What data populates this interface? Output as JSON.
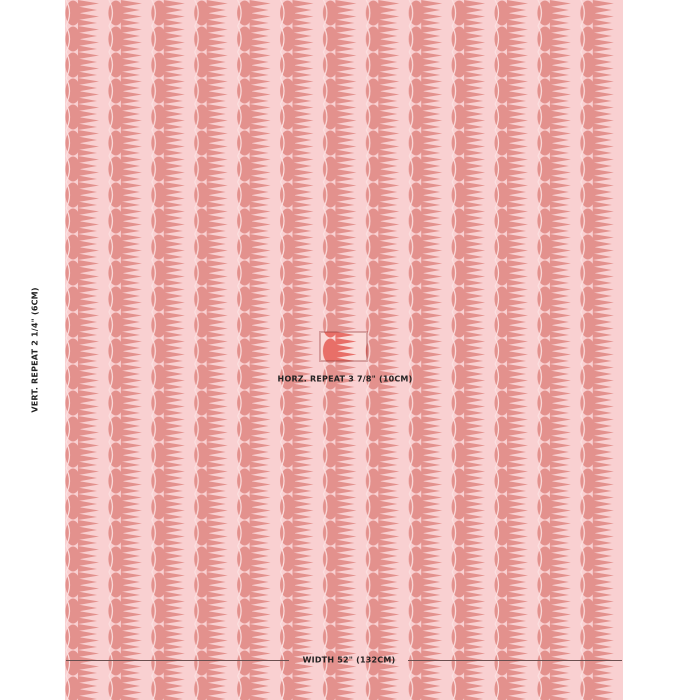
{
  "colors": {
    "background": "#f9d0d1",
    "motif": "#e3918d",
    "repeat_highlight": "#e86f68",
    "highlight_background": "#fbdad8"
  },
  "labels": {
    "vertical_repeat": "VERT. REPEAT 2 1/4\" (6CM)",
    "horizontal_repeat": "HORZ. REPEAT 3 7/8\" (10CM)",
    "width": "WIDTH 52\" (132CM)"
  }
}
